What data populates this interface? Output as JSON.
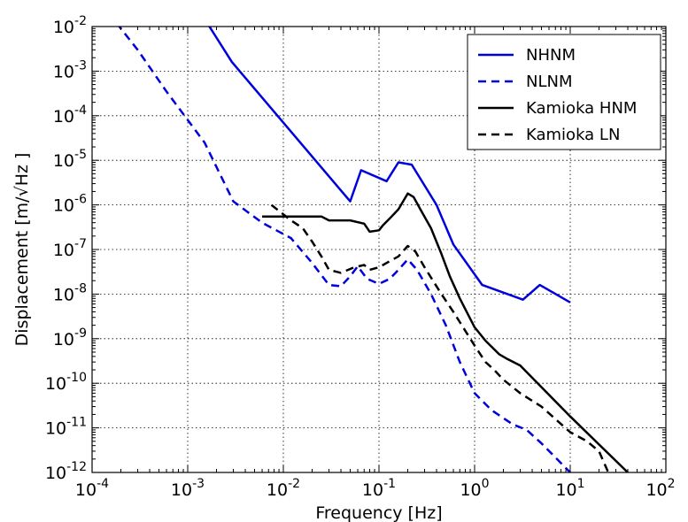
{
  "chart_data": {
    "type": "line",
    "title": "",
    "xlabel": "Frequency [Hz]",
    "ylabel": "Displacement [m/√Hz ]",
    "xscale": "log",
    "yscale": "log",
    "xlim": [
      0.0001,
      100
    ],
    "ylim": [
      1e-12,
      0.01
    ],
    "grid": true,
    "legend_position": "top-right",
    "xticks": [
      {
        "value": 0.0001,
        "base": "10",
        "exp": "-4"
      },
      {
        "value": 0.001,
        "base": "10",
        "exp": "-3"
      },
      {
        "value": 0.01,
        "base": "10",
        "exp": "-2"
      },
      {
        "value": 0.1,
        "base": "10",
        "exp": "-1"
      },
      {
        "value": 1,
        "base": "10",
        "exp": "0"
      },
      {
        "value": 10,
        "base": "10",
        "exp": "1"
      },
      {
        "value": 100,
        "base": "10",
        "exp": "2"
      }
    ],
    "yticks": [
      {
        "value": 1e-12,
        "base": "10",
        "exp": "-12"
      },
      {
        "value": 1e-11,
        "base": "10",
        "exp": "-11"
      },
      {
        "value": 1e-10,
        "base": "10",
        "exp": "-10"
      },
      {
        "value": 1e-09,
        "base": "10",
        "exp": "-9"
      },
      {
        "value": 1e-08,
        "base": "10",
        "exp": "-8"
      },
      {
        "value": 1e-07,
        "base": "10",
        "exp": "-7"
      },
      {
        "value": 1e-06,
        "base": "10",
        "exp": "-6"
      },
      {
        "value": 1e-05,
        "base": "10",
        "exp": "-5"
      },
      {
        "value": 0.0001,
        "base": "10",
        "exp": "-4"
      },
      {
        "value": 0.001,
        "base": "10",
        "exp": "-3"
      },
      {
        "value": 0.01,
        "base": "10",
        "exp": "-2"
      }
    ],
    "series": [
      {
        "name": "NHNM",
        "color": "#0000dd",
        "dash": "solid",
        "points": [
          [
            0.0016,
            0.012
          ],
          [
            0.0029,
            0.0016
          ],
          [
            0.05,
            1.2e-06
          ],
          [
            0.065,
            6e-06
          ],
          [
            0.12,
            3.4e-06
          ],
          [
            0.16,
            9e-06
          ],
          [
            0.22,
            8e-06
          ],
          [
            0.4,
            1e-06
          ],
          [
            0.6,
            1.3e-07
          ],
          [
            1.2,
            1.6e-08
          ],
          [
            3.2,
            7.5e-09
          ],
          [
            4.8,
            1.6e-08
          ],
          [
            10,
            6.5e-09
          ]
        ]
      },
      {
        "name": "NLNM",
        "color": "#0000dd",
        "dash": "dashed",
        "points": [
          [
            0.00018,
            0.012
          ],
          [
            0.0003,
            0.003
          ],
          [
            0.0006,
            0.00035
          ],
          [
            0.0015,
            2.5e-05
          ],
          [
            0.003,
            1.2e-06
          ],
          [
            0.006,
            4e-07
          ],
          [
            0.012,
            1.8e-07
          ],
          [
            0.02,
            5e-08
          ],
          [
            0.03,
            1.6e-08
          ],
          [
            0.04,
            1.5e-08
          ],
          [
            0.05,
            2.5e-08
          ],
          [
            0.06,
            4.2e-08
          ],
          [
            0.075,
            2.2e-08
          ],
          [
            0.1,
            1.7e-08
          ],
          [
            0.13,
            2.2e-08
          ],
          [
            0.16,
            3.5e-08
          ],
          [
            0.2,
            6e-08
          ],
          [
            0.25,
            3.5e-08
          ],
          [
            0.35,
            1e-08
          ],
          [
            0.5,
            2e-09
          ],
          [
            0.7,
            3e-10
          ],
          [
            1,
            6e-11
          ],
          [
            1.5,
            2.5e-11
          ],
          [
            2.5,
            1.2e-11
          ],
          [
            3.5,
            9e-12
          ],
          [
            5,
            4.5e-12
          ],
          [
            10,
            1e-12
          ]
        ]
      },
      {
        "name": "Kamioka HNM",
        "color": "#000000",
        "dash": "solid",
        "points": [
          [
            0.006,
            5.5e-07
          ],
          [
            0.025,
            5.5e-07
          ],
          [
            0.03,
            4.5e-07
          ],
          [
            0.05,
            4.5e-07
          ],
          [
            0.07,
            3.8e-07
          ],
          [
            0.08,
            2.5e-07
          ],
          [
            0.1,
            2.7e-07
          ],
          [
            0.11,
            3.5e-07
          ],
          [
            0.13,
            5e-07
          ],
          [
            0.16,
            8e-07
          ],
          [
            0.2,
            1.8e-06
          ],
          [
            0.23,
            1.5e-06
          ],
          [
            0.28,
            7e-07
          ],
          [
            0.35,
            3e-07
          ],
          [
            0.45,
            8e-08
          ],
          [
            0.55,
            2.5e-08
          ],
          [
            0.7,
            8e-09
          ],
          [
            1,
            1.8e-09
          ],
          [
            1.3,
            9e-10
          ],
          [
            1.8,
            4.5e-10
          ],
          [
            2.2,
            3.5e-10
          ],
          [
            3,
            2.5e-10
          ],
          [
            10,
            1.8e-11
          ],
          [
            40,
            1e-12
          ]
        ]
      },
      {
        "name": "Kamioka LN",
        "color": "#000000",
        "dash": "dashed",
        "points": [
          [
            0.0075,
            1e-06
          ],
          [
            0.012,
            4.5e-07
          ],
          [
            0.016,
            3e-07
          ],
          [
            0.02,
            1.5e-07
          ],
          [
            0.025,
            7e-08
          ],
          [
            0.03,
            3.5e-08
          ],
          [
            0.04,
            3e-08
          ],
          [
            0.055,
            4e-08
          ],
          [
            0.07,
            4.5e-08
          ],
          [
            0.08,
            3.5e-08
          ],
          [
            0.1,
            4e-08
          ],
          [
            0.13,
            5.5e-08
          ],
          [
            0.16,
            7e-08
          ],
          [
            0.2,
            1.2e-07
          ],
          [
            0.24,
            9e-08
          ],
          [
            0.3,
            4e-08
          ],
          [
            0.45,
            1e-08
          ],
          [
            0.6,
            4e-09
          ],
          [
            0.8,
            1.5e-09
          ],
          [
            1,
            7e-10
          ],
          [
            1.3,
            3e-10
          ],
          [
            1.6,
            2e-10
          ],
          [
            2,
            1.2e-10
          ],
          [
            3,
            6e-11
          ],
          [
            5,
            3e-11
          ],
          [
            10,
            8e-12
          ],
          [
            15,
            5e-12
          ],
          [
            20,
            3e-12
          ],
          [
            25,
            1e-12
          ]
        ]
      }
    ]
  }
}
